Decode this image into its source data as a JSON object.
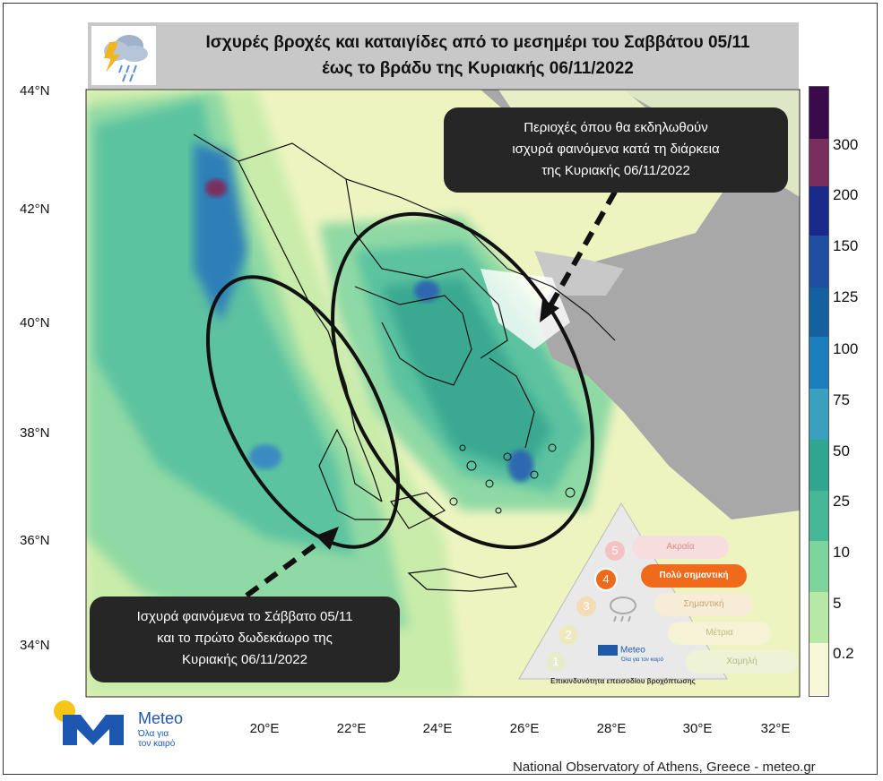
{
  "title": {
    "line1": "Ισχυρές βροχές και καταιγίδες από το μεσημέρι του Σαββάτου 05/11",
    "line2": "έως το βράδυ της Κυριακής 06/11/2022"
  },
  "axes": {
    "lat_labels": [
      "44°N",
      "42°N",
      "40°N",
      "38°N",
      "36°N",
      "34°N"
    ],
    "lon_labels": [
      "20°E",
      "22°E",
      "24°E",
      "26°E",
      "28°E",
      "30°E",
      "32°E"
    ]
  },
  "colorbar": {
    "labels": [
      "300",
      "200",
      "150",
      "125",
      "100",
      "75",
      "50",
      "25",
      "10",
      "5",
      "0.2"
    ],
    "colors": [
      "#3b0a4a",
      "#7a2e5e",
      "#1a2a8c",
      "#1f4fa0",
      "#15609e",
      "#1c7fbd",
      "#3aa0c0",
      "#30a590",
      "#47b897",
      "#7fd49e",
      "#b8e8a6",
      "#e8f5b0",
      "#f6f8d8",
      "#ffffff"
    ]
  },
  "callouts": {
    "top": [
      "Περιοχές όπου θα εκδηλωθούν",
      "ισχυρά φαινόμενα κατά τη διάρκεια",
      "της Κυριακής 06/11/2022"
    ],
    "bottom": [
      "Ισχυρά φαινόμενα το Σάββατο 05/11",
      "και το πρώτο δωδεκάωρο της",
      "Κυριακής 06/11/2022"
    ]
  },
  "risk_legend": {
    "levels": [
      {
        "num": "5",
        "label": "Ακραία"
      },
      {
        "num": "4",
        "label": "Πολύ σημαντική"
      },
      {
        "num": "3",
        "label": "Σημαντική"
      },
      {
        "num": "2",
        "label": "Μέτρια"
      },
      {
        "num": "1",
        "label": "Χαμηλή"
      }
    ],
    "active_level": "4",
    "brand": "Meteo",
    "brand_tagline": "Όλα για τον καιρό",
    "caption": "Επικινδυνότητα επεισοδίου βροχόπτωσης"
  },
  "logo": {
    "name": "Meteo",
    "tagline1": "Όλα για",
    "tagline2": "τον καιρό"
  },
  "credit": "National Observatory of Athens, Greece - meteo.gr"
}
